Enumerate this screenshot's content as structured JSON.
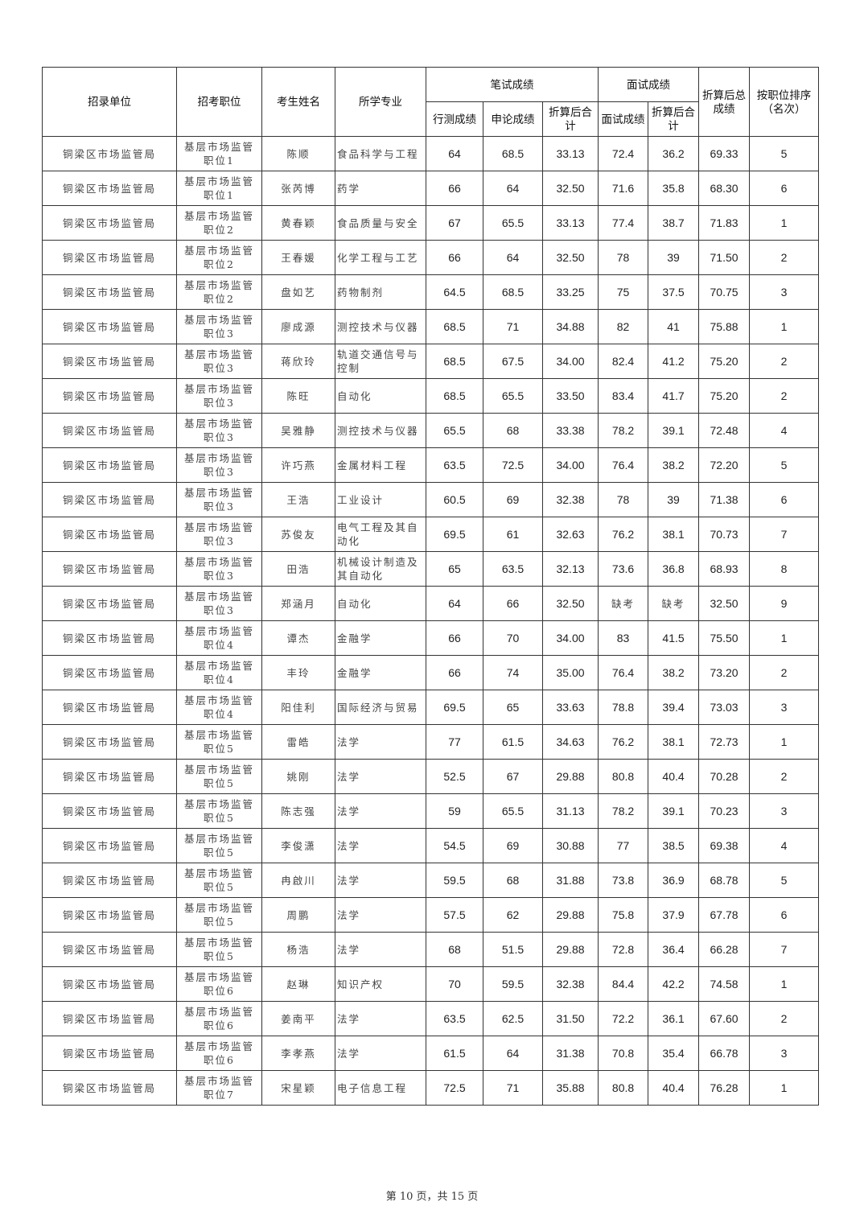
{
  "header": {
    "unit": "招录单位",
    "position": "招考职位",
    "name": "考生姓名",
    "major": "所学专业",
    "written_group": "笔试成绩",
    "written_xingce": "行测成绩",
    "written_shenlun": "申论成绩",
    "written_total": "折算后合计",
    "interview_group": "面试成绩",
    "interview_score": "面试成绩",
    "interview_total": "折算后合计",
    "final_total": "折算后总成绩",
    "rank": "按职位排序（名次）"
  },
  "rows": [
    [
      "铜梁区市场监管局",
      "基层市场监管职位1",
      "陈顺",
      "食品科学与工程",
      "64",
      "68.5",
      "33.13",
      "72.4",
      "36.2",
      "69.33",
      "5"
    ],
    [
      "铜梁区市场监管局",
      "基层市场监管职位1",
      "张芮博",
      "药学",
      "66",
      "64",
      "32.50",
      "71.6",
      "35.8",
      "68.30",
      "6"
    ],
    [
      "铜梁区市场监管局",
      "基层市场监管职位2",
      "黄春颖",
      "食品质量与安全",
      "67",
      "65.5",
      "33.13",
      "77.4",
      "38.7",
      "71.83",
      "1"
    ],
    [
      "铜梁区市场监管局",
      "基层市场监管职位2",
      "王春媛",
      "化学工程与工艺",
      "66",
      "64",
      "32.50",
      "78",
      "39",
      "71.50",
      "2"
    ],
    [
      "铜梁区市场监管局",
      "基层市场监管职位2",
      "盘如艺",
      "药物制剂",
      "64.5",
      "68.5",
      "33.25",
      "75",
      "37.5",
      "70.75",
      "3"
    ],
    [
      "铜梁区市场监管局",
      "基层市场监管职位3",
      "廖成源",
      "测控技术与仪器",
      "68.5",
      "71",
      "34.88",
      "82",
      "41",
      "75.88",
      "1"
    ],
    [
      "铜梁区市场监管局",
      "基层市场监管职位3",
      "蒋欣玲",
      "轨道交通信号与控制",
      "68.5",
      "67.5",
      "34.00",
      "82.4",
      "41.2",
      "75.20",
      "2"
    ],
    [
      "铜梁区市场监管局",
      "基层市场监管职位3",
      "陈旺",
      "自动化",
      "68.5",
      "65.5",
      "33.50",
      "83.4",
      "41.7",
      "75.20",
      "2"
    ],
    [
      "铜梁区市场监管局",
      "基层市场监管职位3",
      "吴雅静",
      "测控技术与仪器",
      "65.5",
      "68",
      "33.38",
      "78.2",
      "39.1",
      "72.48",
      "4"
    ],
    [
      "铜梁区市场监管局",
      "基层市场监管职位3",
      "许巧燕",
      "金属材料工程",
      "63.5",
      "72.5",
      "34.00",
      "76.4",
      "38.2",
      "72.20",
      "5"
    ],
    [
      "铜梁区市场监管局",
      "基层市场监管职位3",
      "王浩",
      "工业设计",
      "60.5",
      "69",
      "32.38",
      "78",
      "39",
      "71.38",
      "6"
    ],
    [
      "铜梁区市场监管局",
      "基层市场监管职位3",
      "苏俊友",
      "电气工程及其自动化",
      "69.5",
      "61",
      "32.63",
      "76.2",
      "38.1",
      "70.73",
      "7"
    ],
    [
      "铜梁区市场监管局",
      "基层市场监管职位3",
      "田浩",
      "机械设计制造及其自动化",
      "65",
      "63.5",
      "32.13",
      "73.6",
      "36.8",
      "68.93",
      "8"
    ],
    [
      "铜梁区市场监管局",
      "基层市场监管职位3",
      "郑涵月",
      "自动化",
      "64",
      "66",
      "32.50",
      "缺考",
      "缺考",
      "32.50",
      "9"
    ],
    [
      "铜梁区市场监管局",
      "基层市场监管职位4",
      "谭杰",
      "金融学",
      "66",
      "70",
      "34.00",
      "83",
      "41.5",
      "75.50",
      "1"
    ],
    [
      "铜梁区市场监管局",
      "基层市场监管职位4",
      "丰玲",
      "金融学",
      "66",
      "74",
      "35.00",
      "76.4",
      "38.2",
      "73.20",
      "2"
    ],
    [
      "铜梁区市场监管局",
      "基层市场监管职位4",
      "阳佳利",
      "国际经济与贸易",
      "69.5",
      "65",
      "33.63",
      "78.8",
      "39.4",
      "73.03",
      "3"
    ],
    [
      "铜梁区市场监管局",
      "基层市场监管职位5",
      "雷皓",
      "法学",
      "77",
      "61.5",
      "34.63",
      "76.2",
      "38.1",
      "72.73",
      "1"
    ],
    [
      "铜梁区市场监管局",
      "基层市场监管职位5",
      "姚刚",
      "法学",
      "52.5",
      "67",
      "29.88",
      "80.8",
      "40.4",
      "70.28",
      "2"
    ],
    [
      "铜梁区市场监管局",
      "基层市场监管职位5",
      "陈志强",
      "法学",
      "59",
      "65.5",
      "31.13",
      "78.2",
      "39.1",
      "70.23",
      "3"
    ],
    [
      "铜梁区市场监管局",
      "基层市场监管职位5",
      "李俊潇",
      "法学",
      "54.5",
      "69",
      "30.88",
      "77",
      "38.5",
      "69.38",
      "4"
    ],
    [
      "铜梁区市场监管局",
      "基层市场监管职位5",
      "冉啟川",
      "法学",
      "59.5",
      "68",
      "31.88",
      "73.8",
      "36.9",
      "68.78",
      "5"
    ],
    [
      "铜梁区市场监管局",
      "基层市场监管职位5",
      "周鹏",
      "法学",
      "57.5",
      "62",
      "29.88",
      "75.8",
      "37.9",
      "67.78",
      "6"
    ],
    [
      "铜梁区市场监管局",
      "基层市场监管职位5",
      "杨浩",
      "法学",
      "68",
      "51.5",
      "29.88",
      "72.8",
      "36.4",
      "66.28",
      "7"
    ],
    [
      "铜梁区市场监管局",
      "基层市场监管职位6",
      "赵琳",
      "知识产权",
      "70",
      "59.5",
      "32.38",
      "84.4",
      "42.2",
      "74.58",
      "1"
    ],
    [
      "铜梁区市场监管局",
      "基层市场监管职位6",
      "姜南平",
      "法学",
      "63.5",
      "62.5",
      "31.50",
      "72.2",
      "36.1",
      "67.60",
      "2"
    ],
    [
      "铜梁区市场监管局",
      "基层市场监管职位6",
      "李孝燕",
      "法学",
      "61.5",
      "64",
      "31.38",
      "70.8",
      "35.4",
      "66.78",
      "3"
    ],
    [
      "铜梁区市场监管局",
      "基层市场监管职位7",
      "宋星颖",
      "电子信息工程",
      "72.5",
      "71",
      "35.88",
      "80.8",
      "40.4",
      "76.28",
      "1"
    ]
  ],
  "footer": "第 10 页，共 15 页"
}
